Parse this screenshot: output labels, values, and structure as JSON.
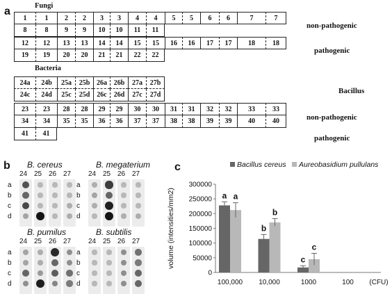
{
  "panel_a": {
    "letter": "a",
    "fungi_header": "Fungi",
    "bacteria_header": "Bacteria",
    "labels": {
      "fungi_nonpath": "non-pathogenic",
      "fungi_path": "pathogenic",
      "bacillus": "Bacillus",
      "bact_nonpath": "non-pathogenic",
      "bact_path": "pathogenic"
    },
    "fungi_rows": [
      [
        "1",
        "1",
        "2",
        "2",
        "3",
        "3",
        "4",
        "4",
        "5",
        "5",
        "6",
        "6",
        "7",
        "7"
      ],
      [
        "8",
        "8",
        "9",
        "9",
        "10",
        "10",
        "11",
        "11"
      ],
      [
        "12",
        "12",
        "13",
        "13",
        "14",
        "14",
        "15",
        "15",
        "16",
        "16",
        "17",
        "17",
        "18",
        "18"
      ],
      [
        "19",
        "19",
        "20",
        "20",
        "21",
        "21",
        "22",
        "22"
      ]
    ],
    "bacillus_rows": [
      [
        "24a",
        "24b",
        "25a",
        "25b",
        "26a",
        "26b",
        "27a",
        "27b"
      ],
      [
        "24c",
        "24d",
        "25c",
        "25d",
        "26c",
        "26d",
        "27c",
        "27d"
      ]
    ],
    "bacteria_rows": [
      [
        "23",
        "23",
        "28",
        "28",
        "29",
        "29",
        "30",
        "30",
        "31",
        "31",
        "32",
        "32",
        "33",
        "33"
      ],
      [
        "34",
        "34",
        "35",
        "35",
        "36",
        "36",
        "37",
        "37",
        "38",
        "38",
        "39",
        "39",
        "40",
        "40"
      ],
      [
        "41",
        "41"
      ]
    ]
  },
  "panel_b": {
    "letter": "b",
    "columns": [
      "24",
      "25",
      "26",
      "27"
    ],
    "rows": [
      "a",
      "b",
      "c",
      "d"
    ],
    "blots": [
      {
        "species": "B. cereus",
        "intensity": [
          [
            0.65,
            0.15,
            0.15,
            0.15
          ],
          [
            0.55,
            0.15,
            0.15,
            0.15
          ],
          [
            0.7,
            0.15,
            0.15,
            0.2
          ],
          [
            0.25,
            0.95,
            0.15,
            0.2
          ]
        ]
      },
      {
        "species": "B. megaterium",
        "intensity": [
          [
            0.2,
            0.75,
            0.15,
            0.15
          ],
          [
            0.25,
            0.55,
            0.15,
            0.15
          ],
          [
            0.2,
            0.9,
            0.15,
            0.15
          ],
          [
            0.15,
            0.95,
            0.2,
            0.2
          ]
        ]
      },
      {
        "species": "B. pumilus",
        "intensity": [
          [
            0.25,
            0.2,
            0.85,
            0.35
          ],
          [
            0.25,
            0.2,
            0.55,
            0.35
          ],
          [
            0.55,
            0.3,
            0.6,
            0.5
          ],
          [
            0.35,
            0.9,
            0.4,
            0.45
          ]
        ]
      },
      {
        "species": "B. subtilis",
        "intensity": [
          [
            0.15,
            0.15,
            0.35,
            0.5
          ],
          [
            0.15,
            0.15,
            0.35,
            0.45
          ],
          [
            0.15,
            0.15,
            0.35,
            0.55
          ],
          [
            0.15,
            0.15,
            0.35,
            0.55
          ]
        ]
      }
    ]
  },
  "chart_data": {
    "type": "bar",
    "panel_letter": "c",
    "ylabel": "volume (intensities/mm2)",
    "xunit": "(CFU)",
    "categories": [
      "100,000",
      "10,000",
      "1000",
      "100"
    ],
    "ylim": [
      0,
      300000
    ],
    "yticks": [
      0,
      50000,
      100000,
      150000,
      200000,
      250000,
      300000
    ],
    "series": [
      {
        "name": "Bacillus cereus",
        "color": "#666666",
        "values": [
          228000,
          114000,
          17000,
          0
        ],
        "errors": [
          12000,
          15000,
          6000,
          0
        ],
        "letters": [
          "a",
          "b",
          "c",
          ""
        ]
      },
      {
        "name": "Aureobasidium pullulans",
        "color": "#b8b8b8",
        "values": [
          212000,
          170000,
          45000,
          0
        ],
        "errors": [
          25000,
          13000,
          20000,
          0
        ],
        "letters": [
          "a",
          "b",
          "c",
          ""
        ]
      }
    ]
  }
}
